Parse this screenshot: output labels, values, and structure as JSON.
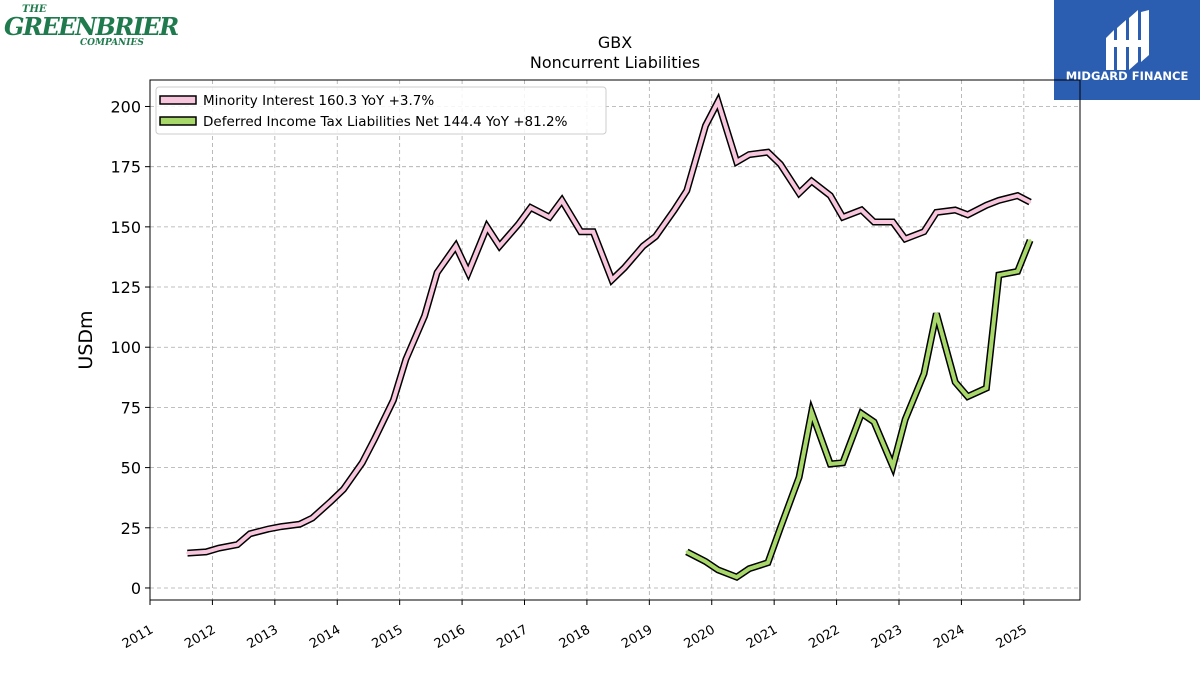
{
  "logos": {
    "left": {
      "line1": "THE",
      "line2": "GREENBRIER",
      "line3": "COMPANIES",
      "color": "#1f7a4d"
    },
    "right": {
      "brand": "MIDGARD FINANCE",
      "background": "#2b5db0"
    }
  },
  "chart_data": {
    "type": "line",
    "title": "GBX",
    "subtitle": "Noncurrent  Liabilities",
    "xlabel": "",
    "ylabel": "USDm",
    "xlim": [
      2011.0,
      2025.9
    ],
    "ylim": [
      -5,
      211
    ],
    "yticks": [
      0,
      25,
      50,
      75,
      100,
      125,
      150,
      175,
      200
    ],
    "xticks": [
      "2011",
      "2012",
      "2013",
      "2014",
      "2015",
      "2016",
      "2017",
      "2018",
      "2019",
      "2020",
      "2021",
      "2022",
      "2023",
      "2024",
      "2025"
    ],
    "grid": true,
    "legend_position": "top-left",
    "series": [
      {
        "name": "Minority Interest",
        "legend": "Minority Interest  160.3 YoY +3.7%",
        "color": "#f7c6dd",
        "x": [
          2011.6,
          2011.9,
          2012.1,
          2012.4,
          2012.6,
          2012.9,
          2013.1,
          2013.4,
          2013.6,
          2013.9,
          2014.1,
          2014.4,
          2014.6,
          2014.9,
          2015.1,
          2015.4,
          2015.6,
          2015.9,
          2016.1,
          2016.4,
          2016.6,
          2016.9,
          2017.1,
          2017.4,
          2017.6,
          2017.9,
          2018.1,
          2018.4,
          2018.6,
          2018.9,
          2019.1,
          2019.4,
          2019.6,
          2019.9,
          2020.1,
          2020.4,
          2020.6,
          2020.9,
          2021.1,
          2021.4,
          2021.6,
          2021.9,
          2022.1,
          2022.4,
          2022.6,
          2022.9,
          2023.1,
          2023.4,
          2023.6,
          2023.9,
          2024.1,
          2024.4,
          2024.6,
          2024.9,
          2025.1
        ],
        "values": [
          14.5,
          15,
          16.5,
          18,
          22.5,
          24.5,
          25.5,
          26.5,
          29,
          36,
          41,
          52,
          62,
          78,
          95,
          113,
          131,
          142,
          131,
          150,
          142,
          151,
          158,
          154,
          161,
          148,
          148,
          128,
          133,
          142,
          146,
          157,
          165,
          192,
          202,
          177,
          180,
          181,
          176,
          164,
          169,
          163,
          154,
          157,
          152,
          152,
          145,
          148,
          156,
          157,
          155,
          159,
          161,
          163,
          160.3
        ]
      },
      {
        "name": "Deferred Income Tax Liabilities Net",
        "legend": "Deferred Income Tax Liabilities Net  144.4 YoY +81.2%",
        "color": "#a9d86a",
        "x": [
          2019.6,
          2019.9,
          2020.1,
          2020.4,
          2020.6,
          2020.9,
          2021.1,
          2021.4,
          2021.6,
          2021.9,
          2022.1,
          2022.4,
          2022.6,
          2022.9,
          2023.1,
          2023.4,
          2023.6,
          2023.9,
          2024.1,
          2024.4,
          2024.6,
          2024.9,
          2025.1
        ],
        "values": [
          15,
          11,
          7.5,
          4.5,
          8,
          10.5,
          25,
          46,
          73,
          51.5,
          52,
          72.5,
          69,
          50.5,
          70,
          89,
          114,
          85.5,
          79.5,
          83,
          130,
          131.5,
          144.4
        ]
      }
    ]
  }
}
